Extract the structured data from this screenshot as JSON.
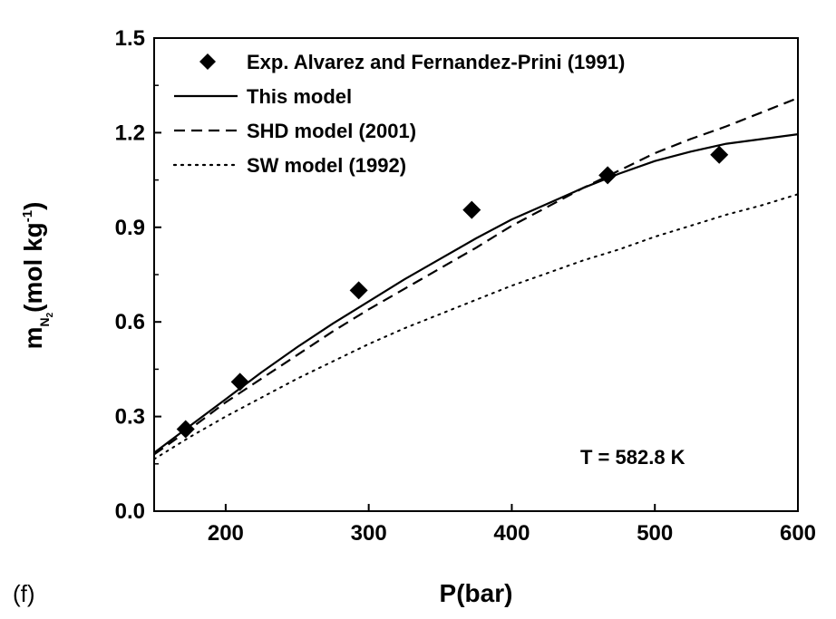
{
  "chart_data": {
    "type": "line",
    "panel_label": "(f)",
    "xlabel": "P(bar)",
    "ylabel_main": "m",
    "ylabel_sub1": "N",
    "ylabel_sub2": "2",
    "ylabel_units": "(mol kg",
    "ylabel_sup": "-1",
    "ylabel_close": ")",
    "xlim": [
      150,
      600
    ],
    "ylim": [
      0.0,
      1.5
    ],
    "xticks": [
      200,
      300,
      400,
      500,
      600
    ],
    "yticks": [
      0.0,
      0.3,
      0.6,
      0.9,
      1.2,
      1.5
    ],
    "xtick_labels": [
      "200",
      "300",
      "400",
      "500",
      "600"
    ],
    "ytick_labels": [
      "0.0",
      "0.3",
      "0.6",
      "0.9",
      "1.2",
      "1.5"
    ],
    "annotation": "T = 582.8 K",
    "legend_position": "top-left",
    "grid": false,
    "series": [
      {
        "name": "Exp. Alvarez and Fernandez-Prini (1991)",
        "style": "markers",
        "marker": "diamond",
        "x": [
          172,
          210,
          293,
          372,
          467,
          545
        ],
        "y": [
          0.26,
          0.41,
          0.7,
          0.955,
          1.065,
          1.13
        ]
      },
      {
        "name": "This model",
        "style": "solid",
        "x": [
          150,
          175,
          200,
          225,
          250,
          275,
          300,
          325,
          350,
          375,
          400,
          425,
          450,
          475,
          500,
          525,
          550,
          575,
          600
        ],
        "y": [
          0.185,
          0.27,
          0.355,
          0.44,
          0.52,
          0.595,
          0.665,
          0.735,
          0.8,
          0.865,
          0.925,
          0.975,
          1.025,
          1.07,
          1.11,
          1.14,
          1.165,
          1.18,
          1.195
        ]
      },
      {
        "name": "SHD model (2001)",
        "style": "dashed",
        "x": [
          150,
          175,
          200,
          225,
          250,
          275,
          300,
          325,
          350,
          375,
          400,
          425,
          450,
          475,
          500,
          525,
          550,
          575,
          600
        ],
        "y": [
          0.18,
          0.26,
          0.345,
          0.42,
          0.495,
          0.57,
          0.64,
          0.705,
          0.77,
          0.835,
          0.905,
          0.965,
          1.025,
          1.08,
          1.135,
          1.18,
          1.22,
          1.265,
          1.31
        ]
      },
      {
        "name": "SW model (1992)",
        "style": "dotted",
        "x": [
          150,
          175,
          200,
          225,
          250,
          275,
          300,
          325,
          350,
          375,
          400,
          425,
          450,
          475,
          500,
          525,
          550,
          575,
          600
        ],
        "y": [
          0.165,
          0.235,
          0.3,
          0.36,
          0.42,
          0.475,
          0.53,
          0.58,
          0.625,
          0.67,
          0.715,
          0.755,
          0.795,
          0.83,
          0.87,
          0.905,
          0.94,
          0.97,
          1.005
        ]
      }
    ]
  }
}
